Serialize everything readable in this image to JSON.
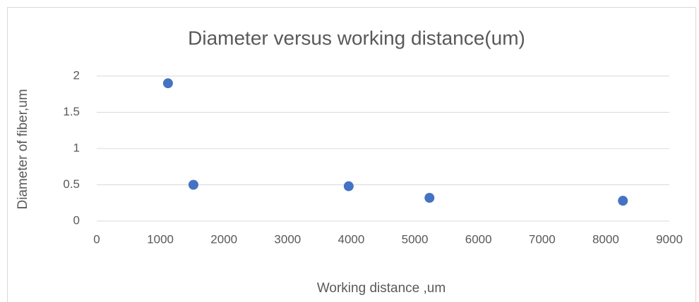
{
  "chart_data": {
    "type": "scatter",
    "title": "Diameter versus working distance(um)",
    "x_label": "Working distance ,um",
    "y_label": "Diameter of fiber,um",
    "series": [
      {
        "name": "Diameter",
        "color": "#4472c4",
        "x": [
          1120,
          1520,
          3960,
          5230,
          8270
        ],
        "values": [
          1.9,
          0.5,
          0.48,
          0.32,
          0.28
        ]
      }
    ],
    "xlim": [
      0,
      9000
    ],
    "xticks": [
      0,
      1000,
      2000,
      3000,
      4000,
      5000,
      6000,
      7000,
      8000,
      9000
    ],
    "ylim": [
      0,
      2
    ],
    "yticks": [
      0,
      0.5,
      1,
      1.5,
      2
    ],
    "grid": true
  }
}
